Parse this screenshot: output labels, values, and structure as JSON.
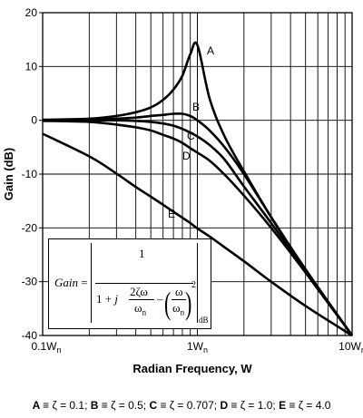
{
  "chart_data": {
    "type": "line",
    "xlabel": "Radian Frequency, W",
    "ylabel": "Gain (dB)",
    "x_scale": "log",
    "xlim": [
      0.1,
      10
    ],
    "ylim": [
      -40,
      20
    ],
    "x_tick_labels": [
      "0.1W",
      "1W",
      "10W"
    ],
    "x_tick_subscript": "n",
    "y_ticks": [
      -40,
      -30,
      -20,
      -10,
      0,
      10,
      20
    ],
    "grid": true,
    "series": [
      {
        "label": "A",
        "zeta": 0.1,
        "x": [
          0.1,
          0.2,
          0.3,
          0.4,
          0.5,
          0.6,
          0.7,
          0.8,
          0.9,
          1.0,
          1.2,
          1.5,
          2,
          3,
          5,
          10
        ],
        "y": [
          0.1,
          0.3,
          0.8,
          1.5,
          2.4,
          3.8,
          5.7,
          8.3,
          12.3,
          14.0,
          4.0,
          -3.0,
          -9.5,
          -18.0,
          -27.8,
          -40.0
        ]
      },
      {
        "label": "B",
        "zeta": 0.5,
        "x": [
          0.1,
          0.2,
          0.3,
          0.4,
          0.5,
          0.6,
          0.7,
          0.8,
          0.9,
          1.0,
          1.2,
          1.5,
          2,
          3,
          5,
          10
        ],
        "y": [
          0.0,
          0.1,
          0.3,
          0.5,
          0.8,
          1.0,
          1.2,
          1.2,
          0.8,
          0.0,
          -1.9,
          -5.0,
          -10.0,
          -18.0,
          -27.7,
          -40.0
        ]
      },
      {
        "label": "C",
        "zeta": 0.707,
        "x": [
          0.1,
          0.2,
          0.3,
          0.4,
          0.5,
          0.6,
          0.7,
          0.8,
          0.9,
          1.0,
          1.2,
          1.5,
          2,
          3,
          5,
          10
        ],
        "y": [
          0.0,
          0.0,
          0.0,
          -0.1,
          -0.3,
          -0.6,
          -1.0,
          -1.6,
          -2.3,
          -3.0,
          -4.6,
          -7.3,
          -12.3,
          -19.1,
          -28.0,
          -40.0
        ]
      },
      {
        "label": "D",
        "zeta": 1.0,
        "x": [
          0.1,
          0.2,
          0.3,
          0.4,
          0.5,
          0.6,
          0.7,
          0.8,
          0.9,
          1.0,
          1.2,
          1.5,
          2,
          3,
          5,
          10
        ],
        "y": [
          -0.1,
          -0.3,
          -0.8,
          -1.3,
          -1.9,
          -2.7,
          -3.4,
          -4.2,
          -5.2,
          -6.0,
          -7.5,
          -10.1,
          -14.0,
          -20.0,
          -28.3,
          -40.0
        ]
      },
      {
        "label": "E",
        "zeta": 4.0,
        "x": [
          0.1,
          0.2,
          0.3,
          0.4,
          0.5,
          0.6,
          0.7,
          0.8,
          0.9,
          1.0,
          1.2,
          1.5,
          2,
          3,
          5,
          10
        ],
        "y": [
          -2.5,
          -6.7,
          -9.9,
          -12.4,
          -14.2,
          -15.7,
          -17.0,
          -18.1,
          -19.1,
          -20.1,
          -21.6,
          -23.6,
          -26.2,
          -30.0,
          -34.5,
          -40.0
        ]
      }
    ]
  },
  "formula": {
    "lhs": "Gain",
    "equals": "=",
    "numerator": "1",
    "den_one_plus": "1 +",
    "den_j": "j",
    "frac1_num": "2ζω",
    "frac1_den": "ω",
    "frac1_den_sub": "n",
    "minus": "–",
    "frac2_num": "ω",
    "frac2_den": "ω",
    "frac2_den_sub": "n",
    "exponent": "2",
    "unit_sub": "dB"
  },
  "caption": [
    {
      "key": "A",
      "text": "≡ ζ = 0.1; "
    },
    {
      "key": "B",
      "text": "≡ ζ = 0.5; "
    },
    {
      "key": "C",
      "text": "≡ ζ = 0.707; "
    },
    {
      "key": "D",
      "text": "≡ ζ = 1.0; "
    },
    {
      "key": "E",
      "text": "≡ ζ = 4.0"
    }
  ]
}
